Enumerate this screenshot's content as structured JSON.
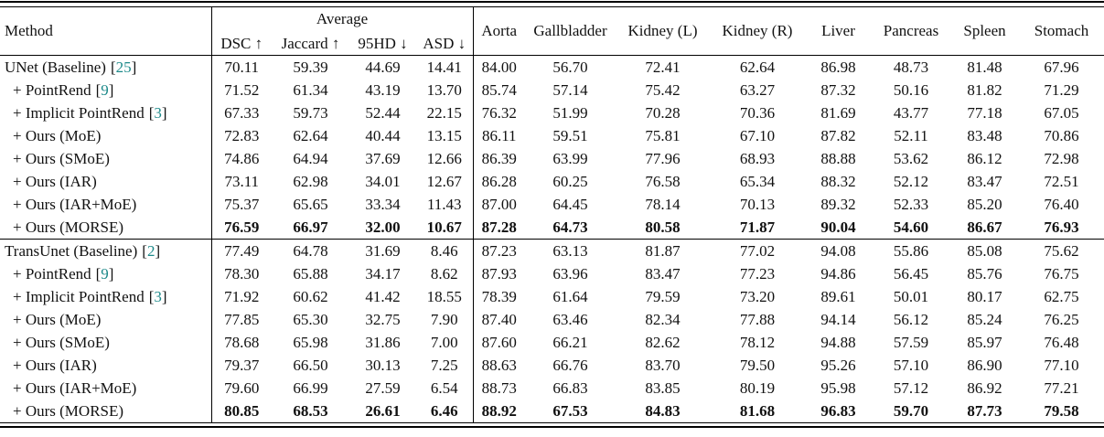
{
  "page": {
    "background": "#ffffff",
    "text_color": "#111111",
    "accent_citation_color": "#1d8a8a"
  },
  "table": {
    "header": {
      "method": "Method",
      "average_group": "Average",
      "metrics": [
        "DSC ↑",
        "Jaccard ↑",
        "95HD ↓",
        "ASD ↓"
      ],
      "organs": [
        "Aorta",
        "Gallbladder",
        "Kidney (L)",
        "Kidney (R)",
        "Liver",
        "Pancreas",
        "Spleen",
        "Stomach"
      ]
    },
    "sections": [
      {
        "rows": [
          {
            "method": "UNet (Baseline)",
            "cite": "25",
            "indent": false,
            "bold": false,
            "values": [
              "70.11",
              "59.39",
              "44.69",
              "14.41",
              "84.00",
              "56.70",
              "72.41",
              "62.64",
              "86.98",
              "48.73",
              "81.48",
              "67.96"
            ]
          },
          {
            "method": "+ PointRend",
            "cite": "9",
            "indent": true,
            "bold": false,
            "values": [
              "71.52",
              "61.34",
              "43.19",
              "13.70",
              "85.74",
              "57.14",
              "75.42",
              "63.27",
              "87.32",
              "50.16",
              "81.82",
              "71.29"
            ]
          },
          {
            "method": "+ Implicit PointRend",
            "cite": "3",
            "indent": true,
            "bold": false,
            "values": [
              "67.33",
              "59.73",
              "52.44",
              "22.15",
              "76.32",
              "51.99",
              "70.28",
              "70.36",
              "81.69",
              "43.77",
              "77.18",
              "67.05"
            ]
          },
          {
            "method": "+ Ours (MoE)",
            "cite": null,
            "indent": true,
            "bold": false,
            "values": [
              "72.83",
              "62.64",
              "40.44",
              "13.15",
              "86.11",
              "59.51",
              "75.81",
              "67.10",
              "87.82",
              "52.11",
              "83.48",
              "70.86"
            ]
          },
          {
            "method": "+ Ours (SMoE)",
            "cite": null,
            "indent": true,
            "bold": false,
            "values": [
              "74.86",
              "64.94",
              "37.69",
              "12.66",
              "86.39",
              "63.99",
              "77.96",
              "68.93",
              "88.88",
              "53.62",
              "86.12",
              "72.98"
            ]
          },
          {
            "method": "+ Ours (IAR)",
            "cite": null,
            "indent": true,
            "bold": false,
            "values": [
              "73.11",
              "62.98",
              "34.01",
              "12.67",
              "86.28",
              "60.25",
              "76.58",
              "65.34",
              "88.32",
              "52.12",
              "83.47",
              "72.51"
            ]
          },
          {
            "method": "+ Ours (IAR+MoE)",
            "cite": null,
            "indent": true,
            "bold": false,
            "values": [
              "75.37",
              "65.65",
              "33.34",
              "11.43",
              "87.00",
              "64.45",
              "78.14",
              "70.13",
              "89.32",
              "52.33",
              "85.20",
              "76.40"
            ]
          },
          {
            "method": "+ Ours (MORSE)",
            "cite": null,
            "indent": true,
            "bold": true,
            "values": [
              "76.59",
              "66.97",
              "32.00",
              "10.67",
              "87.28",
              "64.73",
              "80.58",
              "71.87",
              "90.04",
              "54.60",
              "86.67",
              "76.93"
            ]
          }
        ]
      },
      {
        "rows": [
          {
            "method": "TransUnet (Baseline)",
            "cite": "2",
            "indent": false,
            "bold": false,
            "values": [
              "77.49",
              "64.78",
              "31.69",
              "8.46",
              "87.23",
              "63.13",
              "81.87",
              "77.02",
              "94.08",
              "55.86",
              "85.08",
              "75.62"
            ]
          },
          {
            "method": "+ PointRend",
            "cite": "9",
            "indent": true,
            "bold": false,
            "values": [
              "78.30",
              "65.88",
              "34.17",
              "8.62",
              "87.93",
              "63.96",
              "83.47",
              "77.23",
              "94.86",
              "56.45",
              "85.76",
              "76.75"
            ]
          },
          {
            "method": "+ Implicit PointRend",
            "cite": "3",
            "indent": true,
            "bold": false,
            "values": [
              "71.92",
              "60.62",
              "41.42",
              "18.55",
              "78.39",
              "61.64",
              "79.59",
              "73.20",
              "89.61",
              "50.01",
              "80.17",
              "62.75"
            ]
          },
          {
            "method": "+ Ours (MoE)",
            "cite": null,
            "indent": true,
            "bold": false,
            "values": [
              "77.85",
              "65.30",
              "32.75",
              "7.90",
              "87.40",
              "63.46",
              "82.34",
              "77.88",
              "94.14",
              "56.12",
              "85.24",
              "76.25"
            ]
          },
          {
            "method": "+ Ours (SMoE)",
            "cite": null,
            "indent": true,
            "bold": false,
            "values": [
              "78.68",
              "65.98",
              "31.86",
              "7.00",
              "87.60",
              "66.21",
              "82.62",
              "78.12",
              "94.88",
              "57.59",
              "85.97",
              "76.48"
            ]
          },
          {
            "method": "+ Ours (IAR)",
            "cite": null,
            "indent": true,
            "bold": false,
            "values": [
              "79.37",
              "66.50",
              "30.13",
              "7.25",
              "88.63",
              "66.76",
              "83.70",
              "79.50",
              "95.26",
              "57.10",
              "86.90",
              "77.10"
            ]
          },
          {
            "method": "+ Ours (IAR+MoE)",
            "cite": null,
            "indent": true,
            "bold": false,
            "values": [
              "79.60",
              "66.99",
              "27.59",
              "6.54",
              "88.73",
              "66.83",
              "83.85",
              "80.19",
              "95.98",
              "57.12",
              "86.92",
              "77.21"
            ]
          },
          {
            "method": "+ Ours (MORSE)",
            "cite": null,
            "indent": true,
            "bold": true,
            "values": [
              "80.85",
              "68.53",
              "26.61",
              "6.46",
              "88.92",
              "67.53",
              "84.83",
              "81.68",
              "96.83",
              "59.70",
              "87.73",
              "79.58"
            ]
          }
        ]
      }
    ]
  }
}
